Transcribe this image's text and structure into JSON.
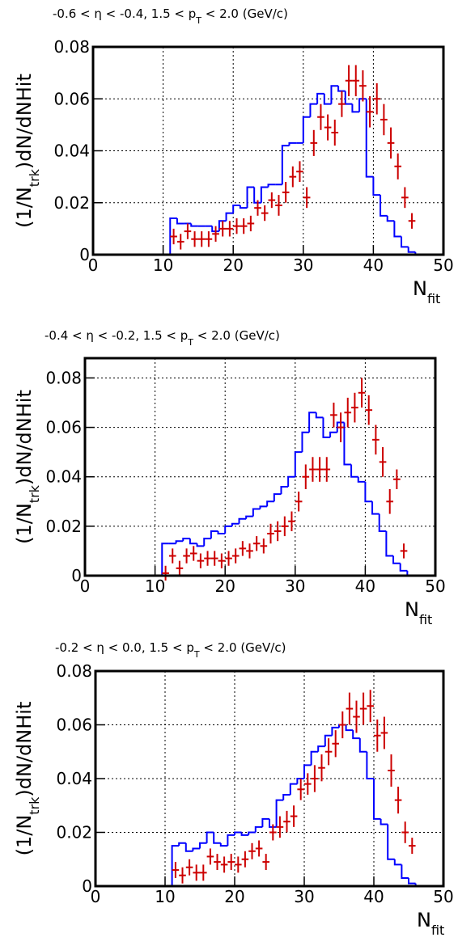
{
  "chart_data": [
    {
      "type": "histogram",
      "title": [
        "-0.6 < η < -0.4, 1.5 < p",
        "T",
        " < 2.0 (GeV/c)"
      ],
      "xlabel": [
        "N",
        "fit"
      ],
      "ylabel": [
        "(1/N",
        "trk",
        ")dN/dNHit"
      ],
      "xlim": [
        0,
        50
      ],
      "ylim": [
        0,
        0.08
      ],
      "xticks": [
        0,
        10,
        20,
        30,
        40,
        50
      ],
      "yticks": [
        0,
        0.02,
        0.04,
        0.06,
        0.08
      ],
      "grid": true,
      "bins": [
        0,
        1,
        2,
        3,
        4,
        5,
        6,
        7,
        8,
        9,
        10,
        11,
        12,
        13,
        14,
        15,
        16,
        17,
        18,
        19,
        20,
        21,
        22,
        23,
        24,
        25,
        26,
        27,
        28,
        29,
        30,
        31,
        32,
        33,
        34,
        35,
        36,
        37,
        38,
        39,
        40,
        41,
        42,
        43,
        44,
        45,
        46,
        47,
        48,
        49,
        50
      ],
      "counts": [
        0,
        0,
        0,
        0,
        0,
        0,
        0,
        0,
        0,
        0,
        0,
        0.014,
        0.012,
        0.012,
        0.011,
        0.011,
        0.011,
        0.009,
        0.013,
        0.016,
        0.019,
        0.018,
        0.026,
        0.02,
        0.026,
        0.027,
        0.027,
        0.042,
        0.043,
        0.043,
        0.053,
        0.058,
        0.062,
        0.058,
        0.065,
        0.063,
        0.058,
        0.055,
        0.06,
        0.03,
        0.023,
        0.015,
        0.013,
        0.007,
        0.003,
        0.001,
        0,
        0,
        0,
        0
      ],
      "color": "#0000ff",
      "points": {
        "color": "#cc0000",
        "x": [
          11.5,
          12.5,
          13.5,
          14.5,
          15.5,
          16.5,
          17.5,
          18.5,
          19.5,
          20.5,
          21.5,
          22.5,
          23.5,
          24.5,
          25.5,
          26.5,
          27.5,
          28.5,
          29.5,
          30.5,
          31.5,
          32.5,
          33.5,
          34.5,
          35.5,
          36.5,
          37.5,
          38.5,
          39.5,
          40.5,
          41.5,
          42.5,
          43.5,
          44.5,
          45.5
        ],
        "values": [
          0.007,
          0.005,
          0.009,
          0.006,
          0.006,
          0.006,
          0.008,
          0.01,
          0.01,
          0.011,
          0.011,
          0.012,
          0.018,
          0.016,
          0.021,
          0.019,
          0.024,
          0.03,
          0.032,
          0.022,
          0.043,
          0.053,
          0.049,
          0.047,
          0.058,
          0.067,
          0.067,
          0.065,
          0.055,
          0.06,
          0.052,
          0.043,
          0.034,
          0.022,
          0.013
        ],
        "errors": [
          0.003,
          0.003,
          0.003,
          0.003,
          0.003,
          0.003,
          0.003,
          0.003,
          0.003,
          0.003,
          0.003,
          0.003,
          0.003,
          0.003,
          0.003,
          0.004,
          0.004,
          0.004,
          0.004,
          0.004,
          0.005,
          0.005,
          0.005,
          0.005,
          0.005,
          0.006,
          0.006,
          0.006,
          0.006,
          0.006,
          0.006,
          0.006,
          0.005,
          0.004,
          0.003
        ]
      }
    },
    {
      "type": "histogram",
      "title": [
        "-0.4 < η < -0.2, 1.5 < p",
        "T",
        " < 2.0 (GeV/c)"
      ],
      "xlabel": [
        "N",
        "fit"
      ],
      "ylabel": [
        "(1/N",
        "trk",
        ")dN/dNHit"
      ],
      "xlim": [
        0,
        50
      ],
      "ylim": [
        0,
        0.088
      ],
      "xticks": [
        0,
        10,
        20,
        30,
        40,
        50
      ],
      "yticks": [
        0,
        0.02,
        0.04,
        0.06,
        0.08
      ],
      "grid": true,
      "bins": [
        0,
        1,
        2,
        3,
        4,
        5,
        6,
        7,
        8,
        9,
        10,
        11,
        12,
        13,
        14,
        15,
        16,
        17,
        18,
        19,
        20,
        21,
        22,
        23,
        24,
        25,
        26,
        27,
        28,
        29,
        30,
        31,
        32,
        33,
        34,
        35,
        36,
        37,
        38,
        39,
        40,
        41,
        42,
        43,
        44,
        45,
        46,
        47,
        48,
        49,
        50
      ],
      "counts": [
        0,
        0,
        0,
        0,
        0,
        0,
        0,
        0,
        0,
        0,
        0,
        0.013,
        0.013,
        0.014,
        0.015,
        0.013,
        0.012,
        0.015,
        0.018,
        0.017,
        0.02,
        0.021,
        0.023,
        0.024,
        0.027,
        0.028,
        0.03,
        0.033,
        0.036,
        0.04,
        0.05,
        0.058,
        0.066,
        0.064,
        0.056,
        0.058,
        0.062,
        0.045,
        0.04,
        0.038,
        0.03,
        0.025,
        0.018,
        0.008,
        0.005,
        0.002,
        0,
        0,
        0,
        0
      ],
      "color": "#0000ff",
      "points": {
        "color": "#cc0000",
        "x": [
          11.5,
          12.5,
          13.5,
          14.5,
          15.5,
          16.5,
          17.5,
          18.5,
          19.5,
          20.5,
          21.5,
          22.5,
          23.5,
          24.5,
          25.5,
          26.5,
          27.5,
          28.5,
          29.5,
          30.5,
          31.5,
          32.5,
          33.5,
          34.5,
          35.5,
          36.5,
          37.5,
          38.5,
          39.5,
          40.5,
          41.5,
          42.5,
          43.5,
          44.5,
          45.5
        ],
        "values": [
          0.001,
          0.008,
          0.003,
          0.008,
          0.009,
          0.006,
          0.007,
          0.007,
          0.006,
          0.007,
          0.008,
          0.011,
          0.01,
          0.013,
          0.012,
          0.017,
          0.018,
          0.02,
          0.022,
          0.03,
          0.04,
          0.043,
          0.043,
          0.043,
          0.065,
          0.06,
          0.066,
          0.068,
          0.074,
          0.067,
          0.055,
          0.046,
          0.03,
          0.039,
          0.01
        ],
        "errors": [
          0.003,
          0.003,
          0.003,
          0.003,
          0.003,
          0.003,
          0.003,
          0.003,
          0.003,
          0.003,
          0.003,
          0.003,
          0.003,
          0.003,
          0.003,
          0.004,
          0.004,
          0.004,
          0.004,
          0.004,
          0.005,
          0.005,
          0.005,
          0.005,
          0.005,
          0.006,
          0.006,
          0.006,
          0.006,
          0.006,
          0.006,
          0.006,
          0.005,
          0.004,
          0.003
        ]
      }
    },
    {
      "type": "histogram",
      "title": [
        "-0.2 < η < 0.0, 1.5 < p",
        "T",
        " < 2.0 (GeV/c)"
      ],
      "xlabel": [
        "N",
        "fit"
      ],
      "ylabel": [
        "(1/N",
        "trk",
        ")dN/dNHit"
      ],
      "xlim": [
        0,
        50
      ],
      "ylim": [
        0,
        0.08
      ],
      "xticks": [
        0,
        10,
        20,
        30,
        40,
        50
      ],
      "yticks": [
        0,
        0.02,
        0.04,
        0.06,
        0.08
      ],
      "grid": true,
      "bins": [
        0,
        1,
        2,
        3,
        4,
        5,
        6,
        7,
        8,
        9,
        10,
        11,
        12,
        13,
        14,
        15,
        16,
        17,
        18,
        19,
        20,
        21,
        22,
        23,
        24,
        25,
        26,
        27,
        28,
        29,
        30,
        31,
        32,
        33,
        34,
        35,
        36,
        37,
        38,
        39,
        40,
        41,
        42,
        43,
        44,
        45,
        46,
        47,
        48,
        49,
        50
      ],
      "counts": [
        0,
        0,
        0,
        0,
        0,
        0,
        0,
        0,
        0,
        0,
        0,
        0.015,
        0.016,
        0.013,
        0.014,
        0.016,
        0.02,
        0.016,
        0.015,
        0.019,
        0.02,
        0.019,
        0.02,
        0.022,
        0.025,
        0.022,
        0.032,
        0.034,
        0.038,
        0.04,
        0.045,
        0.05,
        0.052,
        0.056,
        0.059,
        0.06,
        0.058,
        0.055,
        0.05,
        0.04,
        0.025,
        0.023,
        0.01,
        0.008,
        0.003,
        0.001,
        0,
        0,
        0,
        0
      ],
      "color": "#0000ff",
      "points": {
        "color": "#cc0000",
        "x": [
          11.5,
          12.5,
          13.5,
          14.5,
          15.5,
          16.5,
          17.5,
          18.5,
          19.5,
          20.5,
          21.5,
          22.5,
          23.5,
          24.5,
          25.5,
          26.5,
          27.5,
          28.5,
          29.5,
          30.5,
          31.5,
          32.5,
          33.5,
          34.5,
          35.5,
          36.5,
          37.5,
          38.5,
          39.5,
          40.5,
          41.5,
          42.5,
          43.5,
          44.5,
          45.5
        ],
        "values": [
          0.006,
          0.004,
          0.007,
          0.005,
          0.005,
          0.011,
          0.009,
          0.008,
          0.009,
          0.008,
          0.01,
          0.013,
          0.014,
          0.009,
          0.02,
          0.022,
          0.024,
          0.026,
          0.036,
          0.038,
          0.04,
          0.044,
          0.05,
          0.053,
          0.06,
          0.066,
          0.063,
          0.066,
          0.067,
          0.056,
          0.057,
          0.043,
          0.032,
          0.02,
          0.015
        ],
        "errors": [
          0.003,
          0.003,
          0.003,
          0.003,
          0.003,
          0.003,
          0.003,
          0.003,
          0.003,
          0.003,
          0.003,
          0.003,
          0.003,
          0.003,
          0.003,
          0.004,
          0.004,
          0.004,
          0.004,
          0.004,
          0.005,
          0.005,
          0.005,
          0.005,
          0.005,
          0.006,
          0.006,
          0.006,
          0.006,
          0.006,
          0.006,
          0.006,
          0.005,
          0.004,
          0.003
        ]
      }
    }
  ]
}
